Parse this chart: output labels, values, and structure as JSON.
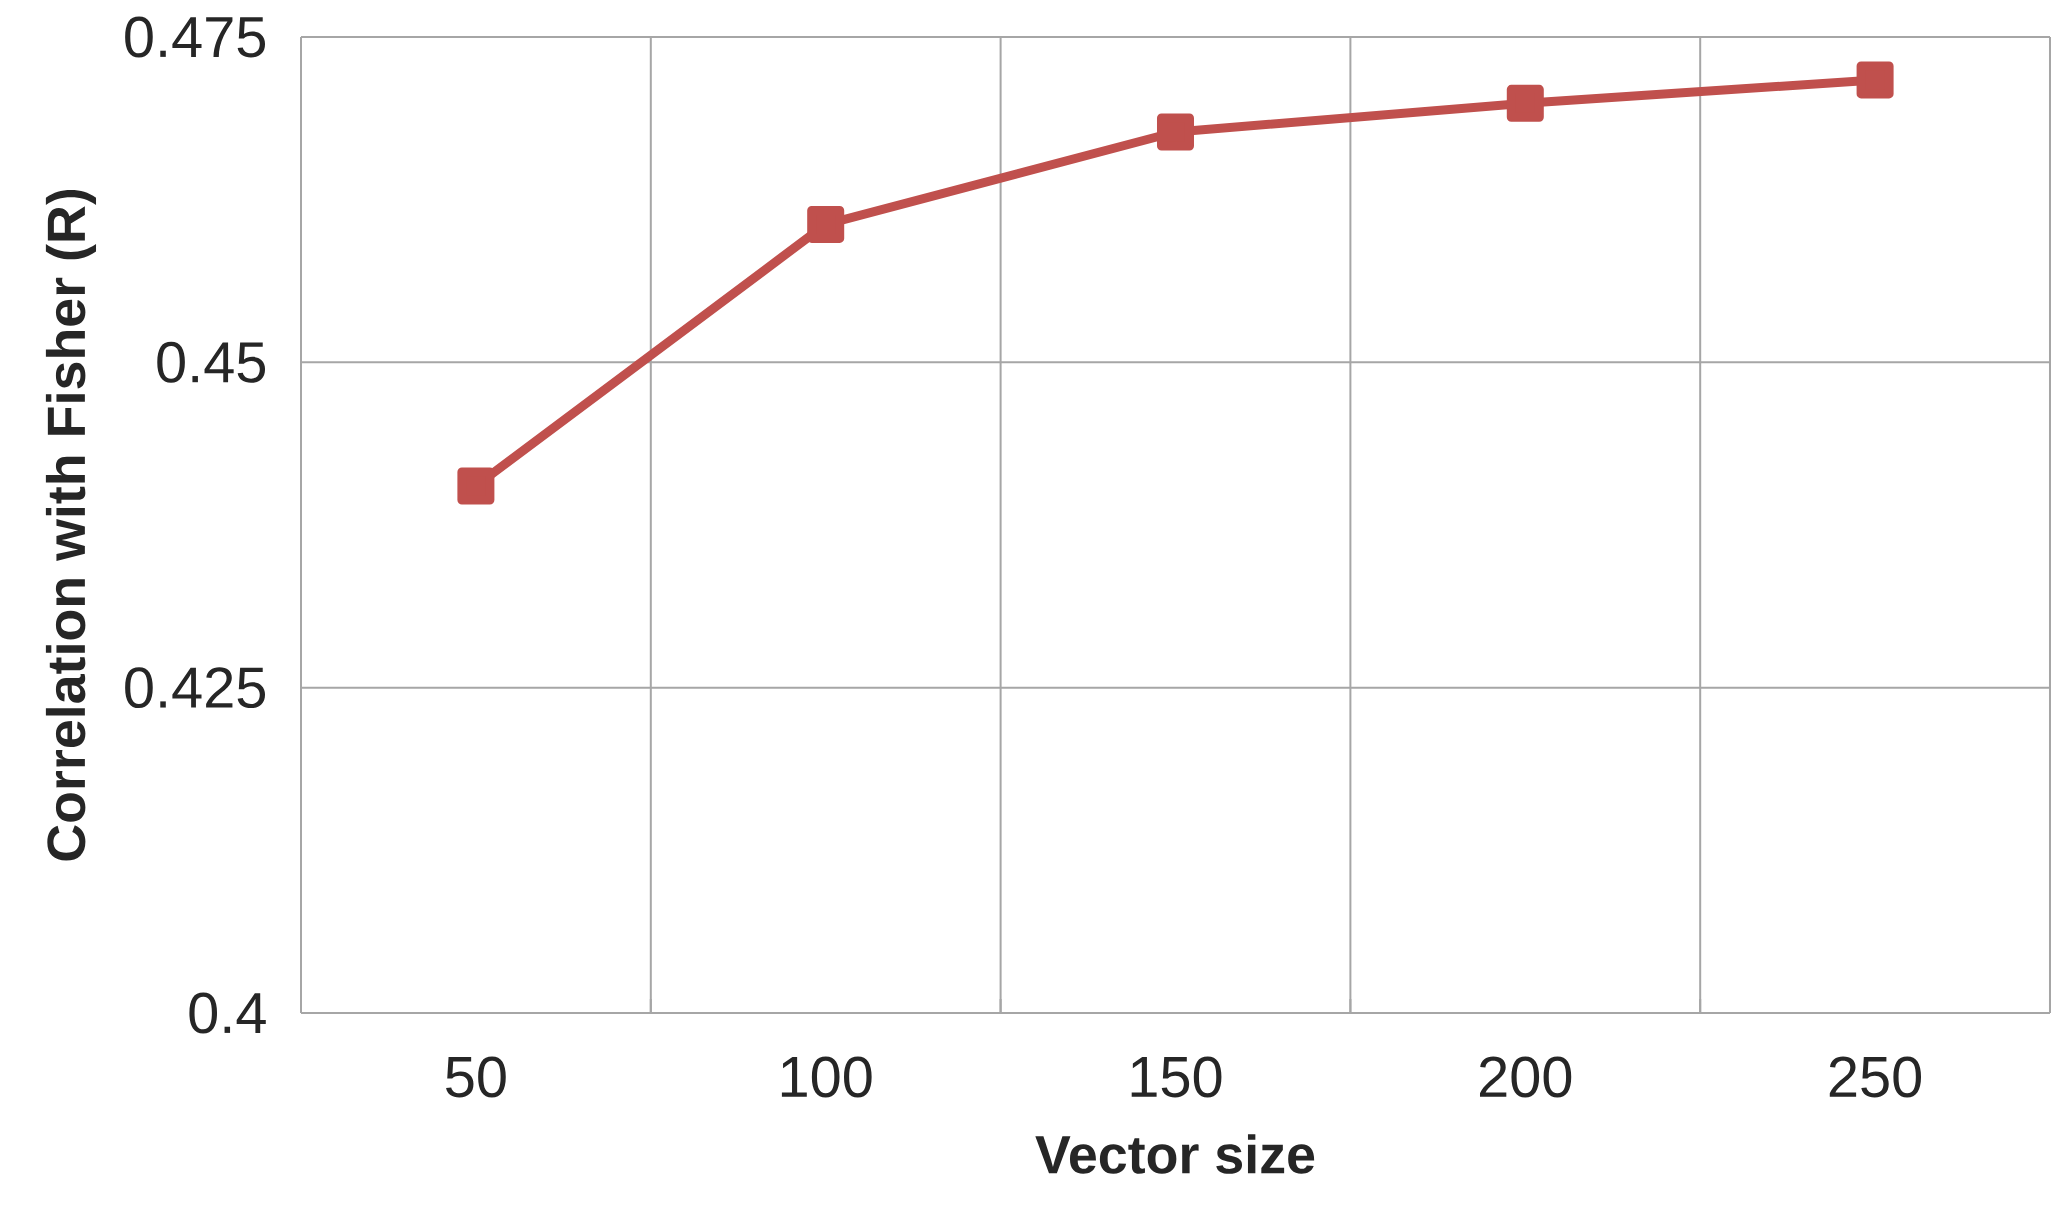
{
  "chart_data": {
    "type": "line",
    "xlabel": "Vector size",
    "ylabel": "Correlation with Fisher (R)",
    "categories": [
      "50",
      "100",
      "150",
      "200",
      "250"
    ],
    "series": [
      {
        "color": "#c0504d",
        "values": [
          0.4405,
          0.4606,
          0.4677,
          0.4699,
          0.4717
        ]
      }
    ],
    "ylim": [
      0.4,
      0.475
    ],
    "yticks": [
      0.4,
      0.425,
      0.45,
      0.475
    ],
    "grid": true,
    "marker": "square",
    "line_style": "solid"
  }
}
